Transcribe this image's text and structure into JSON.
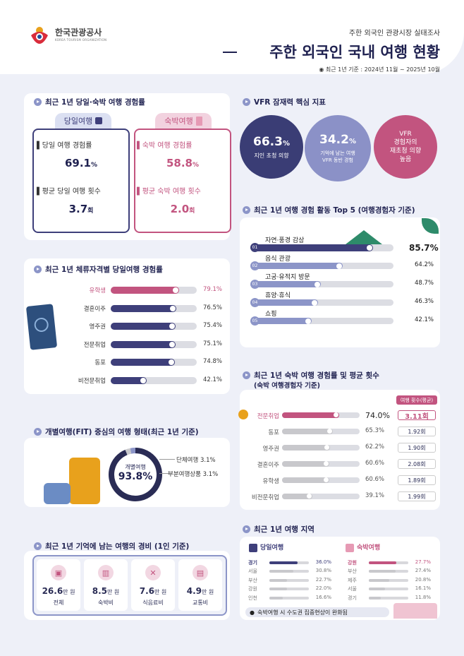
{
  "header": {
    "org_name": "한국관광공사",
    "org_sub": "KOREA TOURISM ORGANIZATION",
    "survey": "주한 외국인 관광시장 실태조사",
    "title": "주한 외국인 국내 여행 현황",
    "period": "최근 1년 기준 : 2024년 11월 ~ 2025년 10월"
  },
  "s1": {
    "title": "최근 1년 당일·숙박 여행 경험률",
    "day": {
      "tab": "당일여행",
      "rate_label": "당일 여행 경험률",
      "rate_value": "69.1",
      "rate_unit": "%",
      "count_label": "평균 당일 여행 횟수",
      "count_value": "3.7",
      "count_unit": "회"
    },
    "stay": {
      "tab": "숙박여행",
      "rate_label": "숙박 여행 경험률",
      "rate_value": "58.8",
      "rate_unit": "%",
      "count_label": "평균 숙박 여행 횟수",
      "count_value": "2.0",
      "count_unit": "회"
    }
  },
  "colors": {
    "navy": "#3e3f7a",
    "lav": "#8c95c8",
    "pink": "#c2547f",
    "gray": "#c8c8cc"
  },
  "vfr": {
    "title": "VFR 잠재력 핵심 지표",
    "c1_value": "66.3",
    "c1_unit": "%",
    "c1_label": "지인 초청 의향",
    "c2_value": "34.2",
    "c2_unit": "%",
    "c2_label1": "기억에 남는 여행",
    "c2_label2": "VFR 동반 경험",
    "c3_line1": "VFR",
    "c3_line2": "경험자의",
    "c3_line3": "재초청 의향",
    "c3_line4": "높음"
  },
  "chart_data": [
    {
      "type": "bar",
      "title": "최근 1년 체류자격별 당일여행 경험률",
      "categories": [
        "유학생",
        "결혼이주",
        "영주권",
        "전문취업",
        "동포",
        "비전문취업"
      ],
      "values": [
        79.1,
        76.5,
        75.4,
        75.1,
        74.8,
        42.1
      ],
      "value_labels": [
        "79.1%",
        "76.5%",
        "75.4%",
        "75.1%",
        "74.8%",
        "42.1%"
      ],
      "ylim": [
        0,
        100
      ]
    },
    {
      "type": "bar",
      "title": "최근 1년 여행 경험 활동 Top 5 (여행경험자 기준)",
      "categories": [
        "자연·풍경 감상",
        "음식 관광",
        "고궁·유적지 방문",
        "휴양·휴식",
        "쇼핑"
      ],
      "ranks": [
        "01",
        "02",
        "03",
        "04",
        "05"
      ],
      "values": [
        85.7,
        64.2,
        48.7,
        46.3,
        42.1
      ],
      "value_labels": [
        "85.7%",
        "64.2%",
        "48.7%",
        "46.3%",
        "42.1%"
      ],
      "ylim": [
        0,
        100
      ]
    },
    {
      "type": "bar",
      "title": "최근 1년 숙박 여행 경험률 및 평균 횟수",
      "subtitle": "(숙박 여행경험자 기준)",
      "count_header": "여행 횟수(평균)",
      "categories": [
        "전문취업",
        "동포",
        "영주권",
        "결혼이주",
        "유학생",
        "비전문취업"
      ],
      "values": [
        74.0,
        65.3,
        62.2,
        60.6,
        60.6,
        39.1
      ],
      "value_labels": [
        "74.0%",
        "65.3%",
        "62.2%",
        "60.6%",
        "60.6%",
        "39.1%"
      ],
      "counts": [
        3.11,
        1.92,
        1.9,
        2.08,
        1.89,
        1.99
      ],
      "count_labels": [
        "3.11회",
        "1.92회",
        "1.90회",
        "2.08회",
        "1.89회",
        "1.99회"
      ],
      "ylim": [
        0,
        100
      ]
    },
    {
      "type": "pie",
      "title": "개별여행(FIT) 중심의 여행 형태(최근 1년 기준)",
      "categories": [
        "개별여행",
        "단체여행",
        "부분여행상품"
      ],
      "values": [
        93.8,
        3.1,
        3.1
      ],
      "value_labels": [
        "93.8%",
        "3.1%",
        "3.1%"
      ]
    },
    {
      "type": "table",
      "title": "최근 1년 기억에 남는 여행의 경비 (1인 기준)",
      "categories": [
        "전체",
        "숙박비",
        "식음료비",
        "교통비"
      ],
      "values": [
        26.6,
        8.5,
        7.6,
        4.9
      ],
      "value_labels": [
        "26.6",
        "8.5",
        "7.6",
        "4.9"
      ],
      "unit": "만 원",
      "icons": [
        "wallet-icon",
        "hotel-icon",
        "utensils-icon",
        "bus-icon"
      ]
    },
    {
      "type": "bar",
      "title": "최근 1년 여행 지역",
      "panel": "당일여행",
      "categories": [
        "경기",
        "서울",
        "부산",
        "강원",
        "인천"
      ],
      "values": [
        36.0,
        30.8,
        22.7,
        22.0,
        16.6
      ],
      "value_labels": [
        "36.0%",
        "30.8%",
        "22.7%",
        "22.0%",
        "16.6%"
      ],
      "ylim": [
        0,
        50
      ]
    },
    {
      "type": "bar",
      "title": "최근 1년 여행 지역",
      "panel": "숙박여행",
      "categories": [
        "강원",
        "부산",
        "제주",
        "서울",
        "경기"
      ],
      "values": [
        27.7,
        27.4,
        20.8,
        16.1,
        11.8
      ],
      "value_labels": [
        "27.7%",
        "27.4%",
        "20.8%",
        "16.1%",
        "11.8%"
      ],
      "ylim": [
        0,
        40
      ]
    }
  ],
  "region_note": "숙박여행 시 수도권 집중현상이 완화됨"
}
